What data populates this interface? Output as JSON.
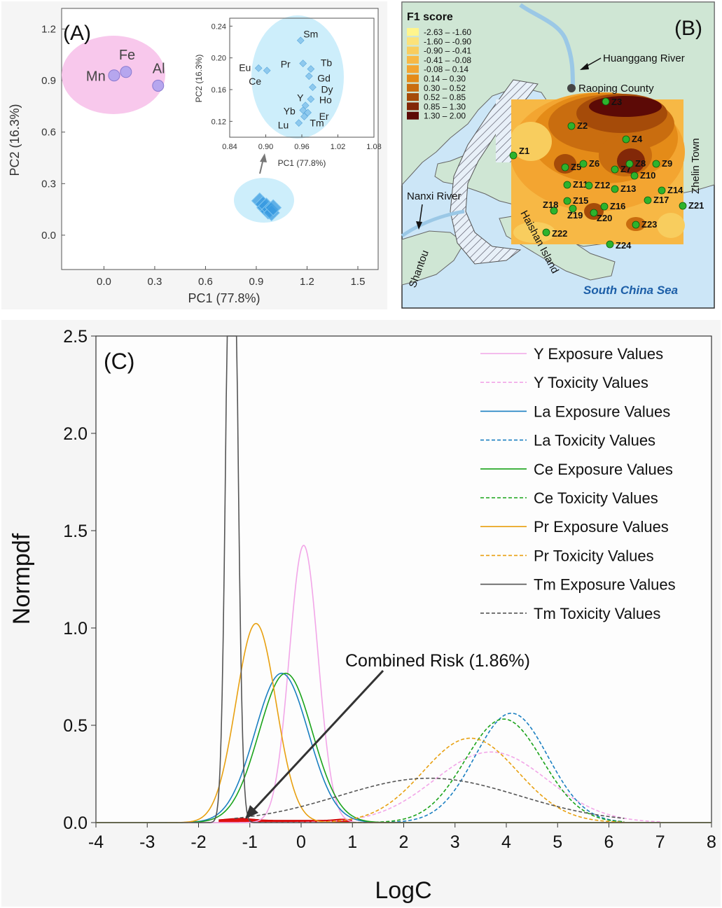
{
  "panel_a": {
    "label": "(A)",
    "xlabel": "PC1 (77.8%)",
    "ylabel": "PC2 (16.3%)",
    "ellipse_fill": "#f8c8ec",
    "inset_ellipse_fill": "#cdeefb"
  },
  "panel_b": {
    "label": "(B)",
    "legend_title": "F1 score",
    "legend": [
      {
        "range": "-2.63 – -1.60",
        "color": "#fff58c"
      },
      {
        "range": "-1.60 – -0.90",
        "color": "#fbe27a"
      },
      {
        "range": "-0.90 – -0.41",
        "color": "#f8cd5e"
      },
      {
        "range": "-0.41 – -0.08",
        "color": "#f7b845"
      },
      {
        "range": "-0.08 – 0.14",
        "color": "#f3a531"
      },
      {
        "range": "0.14 – 0.30",
        "color": "#e48b18"
      },
      {
        "range": "0.30 – 0.52",
        "color": "#c96d0f"
      },
      {
        "range": "0.52 – 0.85",
        "color": "#a54b09"
      },
      {
        "range": "0.85 – 1.30",
        "color": "#822808"
      },
      {
        "range": "1.30 – 2.00",
        "color": "#5c0a06"
      }
    ],
    "places": {
      "river1": "Huanggang River",
      "county": "Raoping County",
      "town": "Zhelin Town",
      "river2": "Nanxi River",
      "city": "Shantou",
      "island": "Haishan Island",
      "sea": "South China Sea"
    },
    "sites": [
      "Z1",
      "Z2",
      "Z3",
      "Z4",
      "Z5",
      "Z6",
      "Z7",
      "Z8",
      "Z9",
      "Z10",
      "Z11",
      "Z12",
      "Z13",
      "Z14",
      "Z15",
      "Z16",
      "Z17",
      "Z18",
      "Z19",
      "Z20",
      "Z21",
      "Z22",
      "Z23",
      "Z24"
    ]
  },
  "panel_c": {
    "label": "(C)",
    "annotation": "Combined Risk (1.86%)",
    "legend": [
      {
        "label": "Y Exposure Values",
        "color": "#f2a6e8",
        "dash": false
      },
      {
        "label": "Y Toxicity Values",
        "color": "#f2a6e8",
        "dash": true
      },
      {
        "label": "La Exposure Values",
        "color": "#1a7fc1",
        "dash": false
      },
      {
        "label": "La Toxicity Values",
        "color": "#1a7fc1",
        "dash": true
      },
      {
        "label": "Ce Exposure Values",
        "color": "#1aa31a",
        "dash": false
      },
      {
        "label": "Ce Toxicity Values",
        "color": "#1aa31a",
        "dash": true
      },
      {
        "label": "Pr Exposure Values",
        "color": "#e8a010",
        "dash": false
      },
      {
        "label": "Pr Toxicity Values",
        "color": "#e8a010",
        "dash": true
      },
      {
        "label": "Tm Exposure Values",
        "color": "#555555",
        "dash": false
      },
      {
        "label": "Tm Toxicity Values",
        "color": "#555555",
        "dash": true
      }
    ]
  },
  "chart_data": [
    {
      "type": "scatter",
      "title": "(A)",
      "xlabel": "PC1 (77.8%)",
      "ylabel": "PC2 (16.3%)",
      "xlim": [
        -0.25,
        1.62
      ],
      "ylim": [
        -0.2,
        1.32
      ],
      "xticks": [
        "0.0",
        "0.3",
        "0.6",
        "0.9",
        "1.2",
        "1.5"
      ],
      "yticks": [
        "0.0",
        "0.3",
        "0.6",
        "0.9",
        "1.2"
      ],
      "points": [
        {
          "label": "Mn",
          "x": 0.06,
          "y": 0.93
        },
        {
          "label": "Fe",
          "x": 0.13,
          "y": 0.95
        },
        {
          "label": "Al",
          "x": 0.32,
          "y": 0.87
        }
      ],
      "cluster_points": [
        {
          "x": 0.92,
          "y": 0.2
        },
        {
          "x": 0.94,
          "y": 0.18
        },
        {
          "x": 0.95,
          "y": 0.16
        },
        {
          "x": 0.96,
          "y": 0.17
        },
        {
          "x": 0.97,
          "y": 0.14
        },
        {
          "x": 0.98,
          "y": 0.15
        },
        {
          "x": 0.99,
          "y": 0.13
        },
        {
          "x": 1.0,
          "y": 0.16
        }
      ]
    },
    {
      "type": "scatter",
      "title": "inset",
      "xlabel": "PC1 (77.8%)",
      "ylabel": "PC2 (16.3%)",
      "xlim": [
        0.84,
        1.08
      ],
      "ylim": [
        0.1,
        0.25
      ],
      "xticks": [
        "0.84",
        "0.90",
        "0.96",
        "1.02",
        "1.08"
      ],
      "yticks": [
        "0.12",
        "0.16",
        "0.20",
        "0.24"
      ],
      "points": [
        {
          "label": "Sm",
          "x": 0.958,
          "y": 0.222
        },
        {
          "label": "Eu",
          "x": 0.888,
          "y": 0.187
        },
        {
          "label": "Ce",
          "x": 0.902,
          "y": 0.184
        },
        {
          "label": "Pr",
          "x": 0.962,
          "y": 0.193
        },
        {
          "label": "Tb",
          "x": 0.975,
          "y": 0.186
        },
        {
          "label": "Gd",
          "x": 0.972,
          "y": 0.177
        },
        {
          "label": "Dy",
          "x": 0.978,
          "y": 0.163
        },
        {
          "label": "Ho",
          "x": 0.975,
          "y": 0.148
        },
        {
          "label": "Y",
          "x": 0.966,
          "y": 0.14
        },
        {
          "label": "Yb",
          "x": 0.962,
          "y": 0.134
        },
        {
          "label": "Er",
          "x": 0.97,
          "y": 0.131
        },
        {
          "label": "Lu",
          "x": 0.955,
          "y": 0.118
        },
        {
          "label": "Tm",
          "x": 0.964,
          "y": 0.126
        }
      ]
    },
    {
      "type": "line",
      "title": "(C)",
      "xlabel": "LogC",
      "ylabel": "Normpdf",
      "xlim": [
        -4,
        8
      ],
      "ylim": [
        0,
        2.5
      ],
      "xticks": [
        "-4",
        "-3",
        "-2",
        "-1",
        "0",
        "1",
        "2",
        "3",
        "4",
        "5",
        "6",
        "7",
        "8"
      ],
      "yticks": [
        "0.0",
        "0.5",
        "1.0",
        "1.5",
        "2.0",
        "2.5"
      ],
      "series": [
        {
          "name": "Y Exposure Values",
          "mean": 0.05,
          "sd": 0.28,
          "xmin": -4,
          "xmax": 8
        },
        {
          "name": "Y Toxicity Values",
          "mean": 3.7,
          "sd": 1.1,
          "xmin": -1,
          "xmax": 7
        },
        {
          "name": "La Exposure Values",
          "mean": -0.38,
          "sd": 0.52,
          "xmin": -4,
          "xmax": 8
        },
        {
          "name": "La Toxicity Values",
          "mean": 4.1,
          "sd": 0.71,
          "xmin": 1,
          "xmax": 6.3
        },
        {
          "name": "Ce Exposure Values",
          "mean": -0.3,
          "sd": 0.52,
          "xmin": -4,
          "xmax": 8
        },
        {
          "name": "Ce Toxicity Values",
          "mean": 3.95,
          "sd": 0.75,
          "xmin": 1,
          "xmax": 6.3
        },
        {
          "name": "Pr Exposure Values",
          "mean": -0.88,
          "sd": 0.39,
          "xmin": -4,
          "xmax": 8
        },
        {
          "name": "Pr Toxicity Values",
          "mean": 3.3,
          "sd": 0.92,
          "xmin": 0.5,
          "xmax": 6.3
        },
        {
          "name": "Tm Exposure Values",
          "mean": -1.35,
          "sd": 0.1,
          "xmin": -4,
          "xmax": 8
        },
        {
          "name": "Tm Toxicity Values",
          "mean": 2.5,
          "sd": 1.75,
          "xmin": -1.3,
          "xmax": 6.3
        }
      ],
      "annotation": {
        "text": "Combined Risk (1.86%)",
        "x": -1.05,
        "y": 0.02
      }
    }
  ]
}
